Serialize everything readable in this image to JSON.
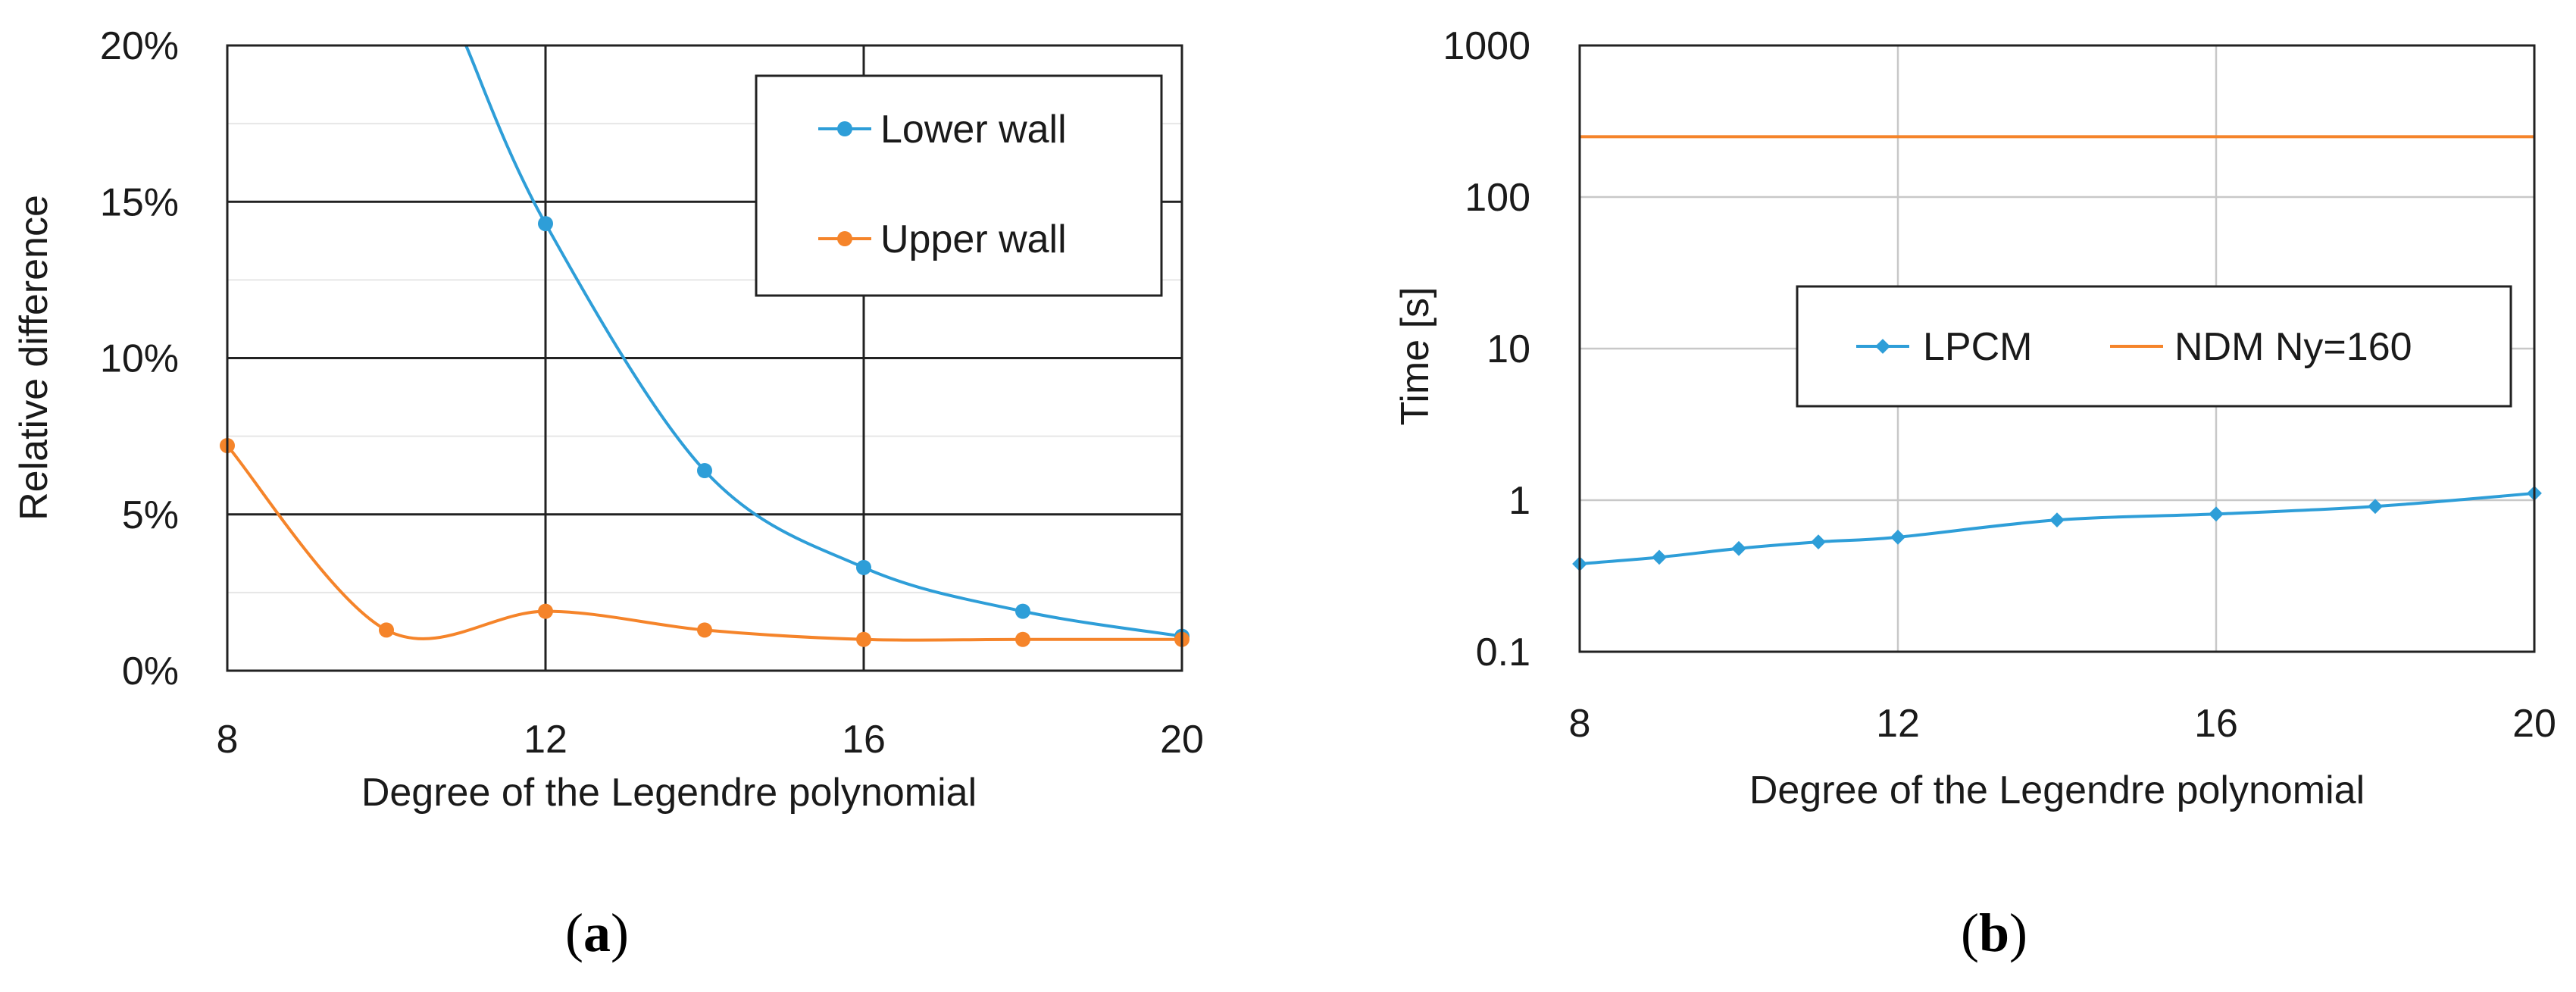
{
  "chart_data": [
    {
      "panel": "a",
      "type": "line",
      "xlabel": "Degree of the Legendre polynomial",
      "ylabel": "Relative difference",
      "xlim": [
        8,
        20
      ],
      "ylim": [
        0,
        20
      ],
      "x_ticks": [
        "8",
        "12",
        "16",
        "20"
      ],
      "y_ticks": [
        "0%",
        "5%",
        "10%",
        "15%",
        "20%"
      ],
      "grid": true,
      "legend_position": "top-right",
      "series": [
        {
          "name": "Lower wall",
          "color": "#2e9ed8",
          "x": [
            12,
            14,
            16,
            18,
            20
          ],
          "values": [
            14.3,
            6.4,
            3.3,
            1.9,
            1.1
          ],
          "curve_start": [
            11,
            20
          ]
        },
        {
          "name": "Upper wall",
          "color": "#f5842a",
          "x": [
            8,
            10,
            12,
            14,
            16,
            18,
            20
          ],
          "values": [
            7.2,
            1.3,
            1.9,
            1.3,
            1.0,
            1.0,
            1.0
          ]
        }
      ],
      "caption_letter": "a"
    },
    {
      "panel": "b",
      "type": "line",
      "yscale": "log",
      "xlabel": "Degree of the Legendre polynomial",
      "ylabel": "Time [s]",
      "xlim": [
        8,
        20
      ],
      "ylim": [
        0.1,
        1000
      ],
      "x_ticks": [
        "8",
        "12",
        "16",
        "20"
      ],
      "y_ticks": [
        "0.1",
        "1",
        "10",
        "100",
        "1000"
      ],
      "grid": true,
      "legend_position": "center-right",
      "series": [
        {
          "name": "LPCM",
          "color": "#2e9ed8",
          "x": [
            8,
            9,
            10,
            11,
            12,
            14,
            16,
            18,
            20
          ],
          "values": [
            0.38,
            0.42,
            0.48,
            0.53,
            0.57,
            0.74,
            0.81,
            0.91,
            1.11
          ]
        },
        {
          "name": "NDM Ny=160",
          "color": "#f5842a",
          "x": [
            8,
            20
          ],
          "values": [
            250,
            250
          ]
        }
      ],
      "caption_letter": "b"
    }
  ]
}
